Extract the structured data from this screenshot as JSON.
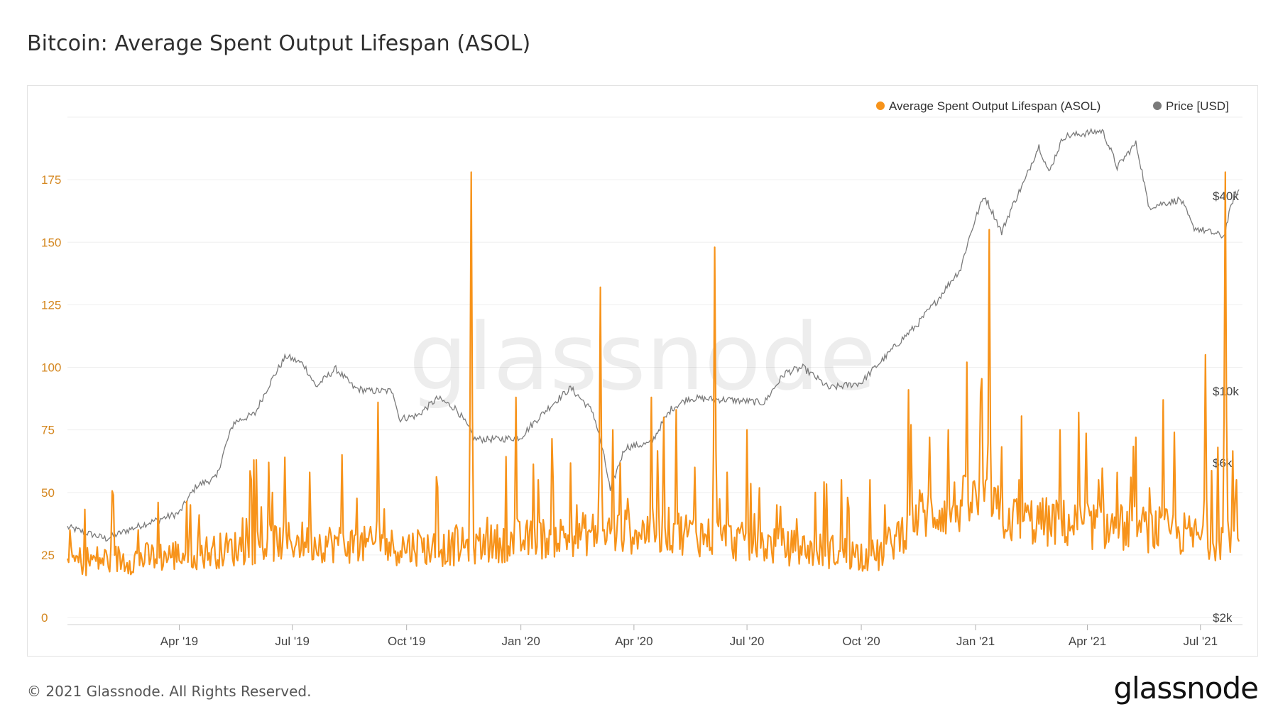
{
  "title": "Bitcoin: Average Spent Output Lifespan (ASOL)",
  "watermark": "glassnode",
  "footer": {
    "copyright": "© 2021 Glassnode. All Rights Reserved.",
    "brand": "glassnode"
  },
  "colors": {
    "asol": "#F7931A",
    "price": "#7a7a7a",
    "grid": "#efefef",
    "axis_left": "#d4861e"
  },
  "chart_data": {
    "type": "line",
    "title": "Bitcoin: Average Spent Output Lifespan (ASOL)",
    "legend": {
      "placement": "top-right",
      "items": [
        "Average Spent Output Lifespan (ASOL)",
        "Price [USD]"
      ]
    },
    "x_range": [
      "2019-01-01",
      "2021-08-01"
    ],
    "x_ticks": [
      {
        "date": "2019-04-01",
        "label": "Apr '19"
      },
      {
        "date": "2019-07-01",
        "label": "Jul '19"
      },
      {
        "date": "2019-10-01",
        "label": "Oct '19"
      },
      {
        "date": "2020-01-01",
        "label": "Jan '20"
      },
      {
        "date": "2020-04-01",
        "label": "Apr '20"
      },
      {
        "date": "2020-07-01",
        "label": "Jul '20"
      },
      {
        "date": "2020-10-01",
        "label": "Oct '20"
      },
      {
        "date": "2021-01-01",
        "label": "Jan '21"
      },
      {
        "date": "2021-04-01",
        "label": "Apr '21"
      },
      {
        "date": "2021-07-01",
        "label": "Jul '21"
      }
    ],
    "y_left": {
      "ylim": [
        0,
        200
      ],
      "ticks": [
        0,
        25,
        50,
        75,
        100,
        125,
        150,
        175
      ],
      "labels": [
        "0",
        "25",
        "50",
        "75",
        "100",
        "125",
        "150",
        "175"
      ]
    },
    "y_right": {
      "scale": "log",
      "ylim": [
        2000,
        70000
      ],
      "ticks": [
        2000,
        6000,
        10000,
        40000
      ],
      "labels": [
        "$2k",
        "$6k",
        "$10k",
        "$40k"
      ]
    },
    "series": [
      {
        "name": "Average Spent Output Lifespan (ASOL)",
        "axis": "left",
        "baseline": [
          [
            "2019-01-01",
            22
          ],
          [
            "2019-03-01",
            23
          ],
          [
            "2019-05-01",
            26
          ],
          [
            "2019-07-01",
            30
          ],
          [
            "2019-09-01",
            28
          ],
          [
            "2019-11-01",
            27
          ],
          [
            "2020-01-01",
            30
          ],
          [
            "2020-03-01",
            33
          ],
          [
            "2020-05-01",
            34
          ],
          [
            "2020-07-01",
            29
          ],
          [
            "2020-09-01",
            26
          ],
          [
            "2020-10-15",
            24
          ],
          [
            "2020-11-15",
            40
          ],
          [
            "2021-01-01",
            45
          ],
          [
            "2021-02-01",
            38
          ],
          [
            "2021-04-01",
            36
          ],
          [
            "2021-06-01",
            34
          ],
          [
            "2021-07-15",
            30
          ],
          [
            "2021-08-01",
            38
          ]
        ],
        "spikes": [
          [
            "2019-02-27",
            35
          ],
          [
            "2019-04-10",
            45
          ],
          [
            "2019-06-15",
            50
          ],
          [
            "2019-06-25",
            64
          ],
          [
            "2019-07-15",
            58
          ],
          [
            "2019-08-10",
            65
          ],
          [
            "2019-09-08",
            86
          ],
          [
            "2019-10-10",
            35
          ],
          [
            "2019-11-10",
            37
          ],
          [
            "2019-11-22",
            178
          ],
          [
            "2019-12-05",
            40
          ],
          [
            "2019-12-28",
            88
          ],
          [
            "2020-01-15",
            55
          ],
          [
            "2020-02-15",
            45
          ],
          [
            "2020-03-05",
            132
          ],
          [
            "2020-03-15",
            75
          ],
          [
            "2020-04-15",
            88
          ],
          [
            "2020-04-25",
            80
          ],
          [
            "2020-05-05",
            83
          ],
          [
            "2020-05-20",
            60
          ],
          [
            "2020-06-05",
            148
          ],
          [
            "2020-06-15",
            58
          ],
          [
            "2020-07-01",
            75
          ],
          [
            "2020-07-25",
            45
          ],
          [
            "2020-08-25",
            50
          ],
          [
            "2020-09-15",
            55
          ],
          [
            "2020-09-20",
            48
          ],
          [
            "2020-10-08",
            55
          ],
          [
            "2020-10-20",
            45
          ],
          [
            "2020-11-08",
            91
          ],
          [
            "2020-11-25",
            72
          ],
          [
            "2020-12-10",
            75
          ],
          [
            "2020-12-25",
            102
          ],
          [
            "2021-01-05",
            90
          ],
          [
            "2021-01-12",
            155
          ],
          [
            "2021-02-05",
            55
          ],
          [
            "2021-03-10",
            75
          ],
          [
            "2021-04-10",
            55
          ],
          [
            "2021-05-10",
            72
          ],
          [
            "2021-06-01",
            87
          ],
          [
            "2021-06-10",
            74
          ],
          [
            "2021-07-05",
            105
          ],
          [
            "2021-07-15",
            68
          ],
          [
            "2021-07-21",
            178
          ],
          [
            "2021-07-30",
            55
          ]
        ]
      },
      {
        "name": "Price [USD]",
        "axis": "right",
        "values": [
          [
            "2019-01-01",
            3800
          ],
          [
            "2019-02-01",
            3500
          ],
          [
            "2019-03-01",
            3850
          ],
          [
            "2019-04-01",
            4200
          ],
          [
            "2019-04-15",
            5100
          ],
          [
            "2019-05-01",
            5400
          ],
          [
            "2019-05-15",
            8000
          ],
          [
            "2019-06-01",
            8500
          ],
          [
            "2019-06-26",
            12800
          ],
          [
            "2019-07-10",
            12100
          ],
          [
            "2019-07-20",
            10300
          ],
          [
            "2019-08-05",
            11700
          ],
          [
            "2019-08-20",
            10200
          ],
          [
            "2019-09-01",
            10000
          ],
          [
            "2019-09-20",
            10000
          ],
          [
            "2019-09-25",
            8200
          ],
          [
            "2019-10-10",
            8400
          ],
          [
            "2019-10-26",
            9500
          ],
          [
            "2019-11-10",
            8800
          ],
          [
            "2019-11-25",
            7100
          ],
          [
            "2019-12-15",
            7100
          ],
          [
            "2020-01-01",
            7200
          ],
          [
            "2020-02-10",
            10200
          ],
          [
            "2020-02-28",
            8600
          ],
          [
            "2020-03-13",
            4900
          ],
          [
            "2020-03-25",
            6700
          ],
          [
            "2020-04-15",
            6900
          ],
          [
            "2020-05-01",
            8800
          ],
          [
            "2020-05-15",
            9500
          ],
          [
            "2020-06-15",
            9400
          ],
          [
            "2020-07-15",
            9200
          ],
          [
            "2020-08-01",
            11400
          ],
          [
            "2020-08-15",
            11800
          ],
          [
            "2020-09-05",
            10200
          ],
          [
            "2020-10-01",
            10600
          ],
          [
            "2020-10-21",
            12800
          ],
          [
            "2020-11-15",
            16000
          ],
          [
            "2020-12-01",
            19000
          ],
          [
            "2020-12-20",
            23800
          ],
          [
            "2021-01-08",
            40000
          ],
          [
            "2021-01-22",
            30800
          ],
          [
            "2021-02-10",
            44800
          ],
          [
            "2021-02-21",
            57000
          ],
          [
            "2021-03-01",
            47000
          ],
          [
            "2021-03-13",
            61000
          ],
          [
            "2021-04-13",
            63500
          ],
          [
            "2021-04-25",
            49000
          ],
          [
            "2021-05-10",
            58000
          ],
          [
            "2021-05-20",
            37000
          ],
          [
            "2021-06-15",
            39000
          ],
          [
            "2021-06-25",
            32000
          ],
          [
            "2021-07-20",
            30000
          ],
          [
            "2021-07-28",
            40000
          ],
          [
            "2021-08-01",
            41500
          ]
        ]
      }
    ]
  }
}
